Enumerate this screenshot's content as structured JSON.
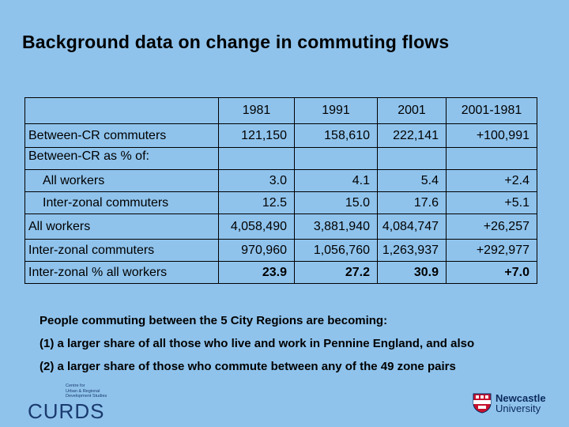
{
  "title": "Background data on change in commuting flows",
  "table": {
    "headers": [
      "",
      "1981",
      "1991",
      "2001",
      "2001-1981"
    ],
    "rows": {
      "between_cr": {
        "label": "Between-CR commuters",
        "values": [
          "121,150",
          "158,610",
          "222,141",
          "+100,991"
        ]
      },
      "section_label": "Between-CR as % of:",
      "all_workers_pct": {
        "label": "All workers",
        "values": [
          "3.0",
          "4.1",
          "5.4",
          "+2.4"
        ]
      },
      "interzonal_pct": {
        "label": "Inter-zonal commuters",
        "values": [
          "12.5",
          "15.0",
          "17.6",
          "+5.1"
        ]
      },
      "all_workers": {
        "label": "All workers",
        "values": [
          "4,058,490",
          "3,881,940",
          "4,084,747",
          "+26,257"
        ]
      },
      "interzonal": {
        "label": "Inter-zonal commuters",
        "values": [
          "970,960",
          "1,056,760",
          "1,263,937",
          "+292,977"
        ]
      },
      "interzonal_share": {
        "label": "Inter-zonal % all workers",
        "values": [
          "23.9",
          "27.2",
          "30.9",
          "+7.0"
        ]
      }
    }
  },
  "notes": [
    "People commuting between the 5 City Regions are becoming:",
    "(1) a larger share of all those who live and work in Pennine England, and also",
    "(2) a larger share of those who commute between any of the 49 zone pairs"
  ],
  "logos": {
    "curds_small": [
      "Centre for",
      "Urban & Regional",
      "Development Studies"
    ],
    "curds_word": "CURDS",
    "nu_line1": "Newcastle",
    "nu_line2": "University"
  },
  "colors": {
    "background": "#8fc3ec",
    "logo_blue": "#1a3a6e",
    "nu_red": "#c8102e"
  }
}
